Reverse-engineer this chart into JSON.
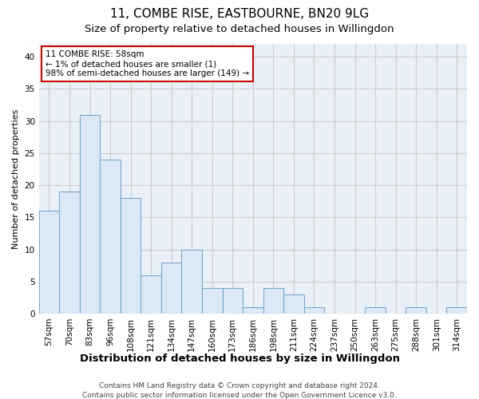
{
  "title_line1": "11, COMBE RISE, EASTBOURNE, BN20 9LG",
  "title_line2": "Size of property relative to detached houses in Willingdon",
  "xlabel": "Distribution of detached houses by size in Willingdon",
  "ylabel": "Number of detached properties",
  "categories": [
    "57sqm",
    "70sqm",
    "83sqm",
    "96sqm",
    "108sqm",
    "121sqm",
    "134sqm",
    "147sqm",
    "160sqm",
    "173sqm",
    "186sqm",
    "198sqm",
    "211sqm",
    "224sqm",
    "237sqm",
    "250sqm",
    "263sqm",
    "275sqm",
    "288sqm",
    "301sqm",
    "314sqm"
  ],
  "values": [
    16,
    19,
    31,
    24,
    18,
    6,
    8,
    10,
    4,
    4,
    1,
    4,
    3,
    1,
    0,
    0,
    1,
    0,
    1,
    0,
    1
  ],
  "bar_color": "#dce8f5",
  "bar_edge_color": "#7aaacc",
  "annotation_box_text": "11 COMBE RISE: 58sqm\n← 1% of detached houses are smaller (1)\n98% of semi-detached houses are larger (149) →",
  "annotation_box_color": "#ffffff",
  "annotation_box_edge_color": "#cc0000",
  "ylim": [
    0,
    42
  ],
  "yticks": [
    0,
    5,
    10,
    15,
    20,
    25,
    30,
    35,
    40
  ],
  "grid_color": "#cccccc",
  "background_color": "#eaf0f8",
  "footer_line1": "Contains HM Land Registry data © Crown copyright and database right 2024.",
  "footer_line2": "Contains public sector information licensed under the Open Government Licence v3.0.",
  "title_fontsize": 11,
  "subtitle_fontsize": 9.5,
  "xlabel_fontsize": 9.5,
  "ylabel_fontsize": 8,
  "tick_fontsize": 7.5,
  "annotation_fontsize": 7.5,
  "footer_fontsize": 6.5
}
